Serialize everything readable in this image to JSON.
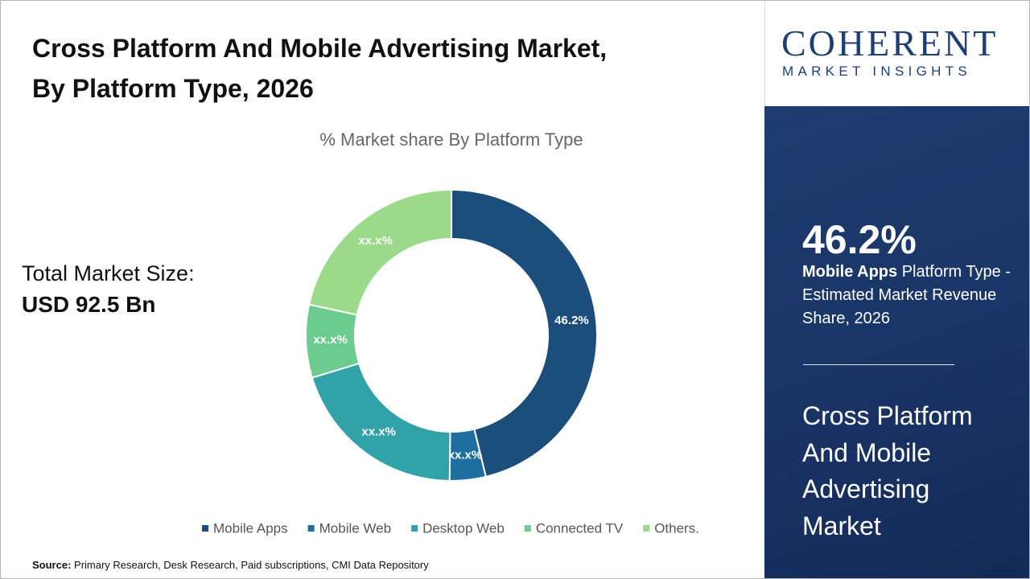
{
  "header": {
    "title_line1": "Cross Platform And Mobile Advertising Market,",
    "title_line2": "By Platform Type, 2026"
  },
  "market_size": {
    "label": "Total Market Size:",
    "value": "USD 92.5 Bn"
  },
  "chart_data": {
    "type": "donut",
    "title": "% Market share By Platform Type",
    "categories": [
      "Mobile Apps",
      "Mobile Web",
      "Desktop Web",
      "Connected TV",
      "Others."
    ],
    "values": [
      46.2,
      4.0,
      20.1,
      8.1,
      21.6
    ],
    "value_labels": [
      "46.2%",
      "xx.x%",
      "xx.x%",
      "xx.x%",
      "xx.x%"
    ],
    "colors": [
      "#1b4e7a",
      "#1f6ea0",
      "#31a2a8",
      "#6ccb8f",
      "#9ada8a"
    ],
    "legend": "bottom"
  },
  "logo": {
    "name": "COHERENT",
    "tagline": "MARKET INSIGHTS"
  },
  "highlight": {
    "value": "46.2%",
    "segment": "Mobile Apps",
    "description": "Platform Type - Estimated Market Revenue Share, 2026"
  },
  "panel_title": "Cross Platform And Mobile Advertising Market",
  "source": {
    "label": "Source:",
    "text": "Primary Research, Desk Research, Paid subscriptions, CMI Data Repository"
  }
}
